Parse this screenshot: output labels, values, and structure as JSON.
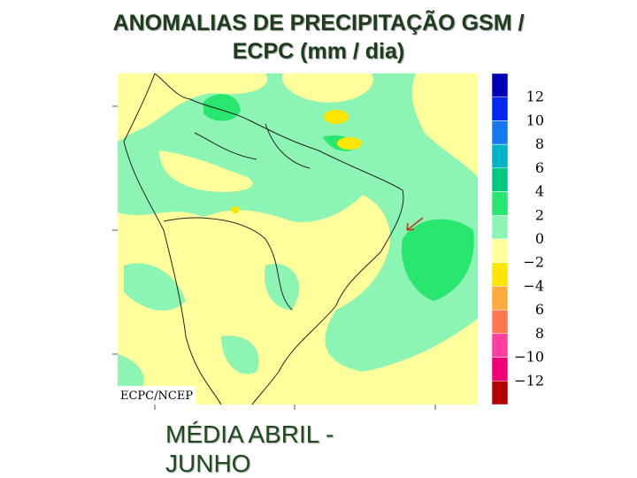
{
  "header": {
    "title_lines": [
      "ANOMALIAS DE PRECIPITAÇÃO GSM /",
      "ECPC (mm / dia)"
    ]
  },
  "map": {
    "credit": "ECPC/NCEP"
  },
  "colorbar": {
    "labels": [
      "12",
      "10",
      "8",
      "6",
      "4",
      "2",
      "0",
      "−2",
      "−4",
      "6",
      "8",
      "−10",
      "−12"
    ],
    "colors": [
      "#0000b4",
      "#0028f0",
      "#1478f0",
      "#00b4c8",
      "#00c882",
      "#28e66e",
      "#8cf5b4",
      "#ffff9c",
      "#ffe600",
      "#ffaa3c",
      "#ff7850",
      "#ff3ca0",
      "#f00078",
      "#b40000"
    ]
  },
  "caption": {
    "lines": [
      "MÉDIA  ABRIL -",
      "JUNHO"
    ]
  }
}
